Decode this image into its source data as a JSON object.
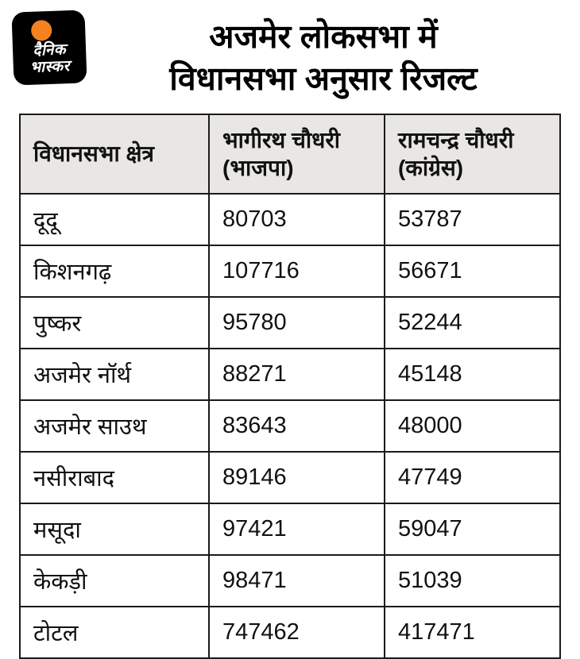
{
  "brand": {
    "logo_line1": "दैनिक",
    "logo_line2": "भास्कर",
    "accent_color": "#f5821f",
    "logo_bg": "#000000"
  },
  "title": {
    "line1": "अजमेर लोकसभा में",
    "line2": "विधानसभा अनुसार रिजल्ट"
  },
  "table": {
    "headers": [
      {
        "line1": "विधानसभा क्षेत्र",
        "line2": ""
      },
      {
        "line1": "भागीरथ चौधरी",
        "line2": "(भाजपा)"
      },
      {
        "line1": "रामचन्द्र चौधरी",
        "line2": "(कांग्रेस)"
      }
    ],
    "rows": [
      [
        "दूदू",
        "80703",
        "53787"
      ],
      [
        "किशनगढ़",
        "107716",
        "56671"
      ],
      [
        "पुष्कर",
        "95780",
        "52244"
      ],
      [
        "अजमेर नॉर्थ",
        "88271",
        "45148"
      ],
      [
        "अजमेर साउथ",
        "83643",
        "48000"
      ],
      [
        "नसीराबाद",
        "89146",
        "47749"
      ],
      [
        "मसूदा",
        "97421",
        "59047"
      ],
      [
        "केकड़ी",
        "98471",
        "51039"
      ],
      [
        "टोटल",
        "747462",
        "417471"
      ]
    ]
  },
  "chart_data": {
    "type": "table",
    "title": "अजमेर लोकसभा में विधानसभा अनुसार रिजल्ट",
    "columns": [
      "विधानसभा क्षेत्र",
      "भागीरथ चौधरी (भाजपा)",
      "रामचन्द्र चौधरी (कांग्रेस)"
    ],
    "categories": [
      "दूदू",
      "किशनगढ़",
      "पुष्कर",
      "अजमेर नॉर्थ",
      "अजमेर साउथ",
      "नसीराबाद",
      "मसूदा",
      "केकड़ी",
      "टोटल"
    ],
    "series": [
      {
        "name": "भागीरथ चौधरी (भाजपा)",
        "values": [
          80703,
          107716,
          95780,
          88271,
          83643,
          89146,
          97421,
          98471,
          747462
        ]
      },
      {
        "name": "रामचन्द्र चौधरी (कांग्रेस)",
        "values": [
          53787,
          56671,
          52244,
          45148,
          48000,
          47749,
          59047,
          51039,
          417471
        ]
      }
    ]
  }
}
